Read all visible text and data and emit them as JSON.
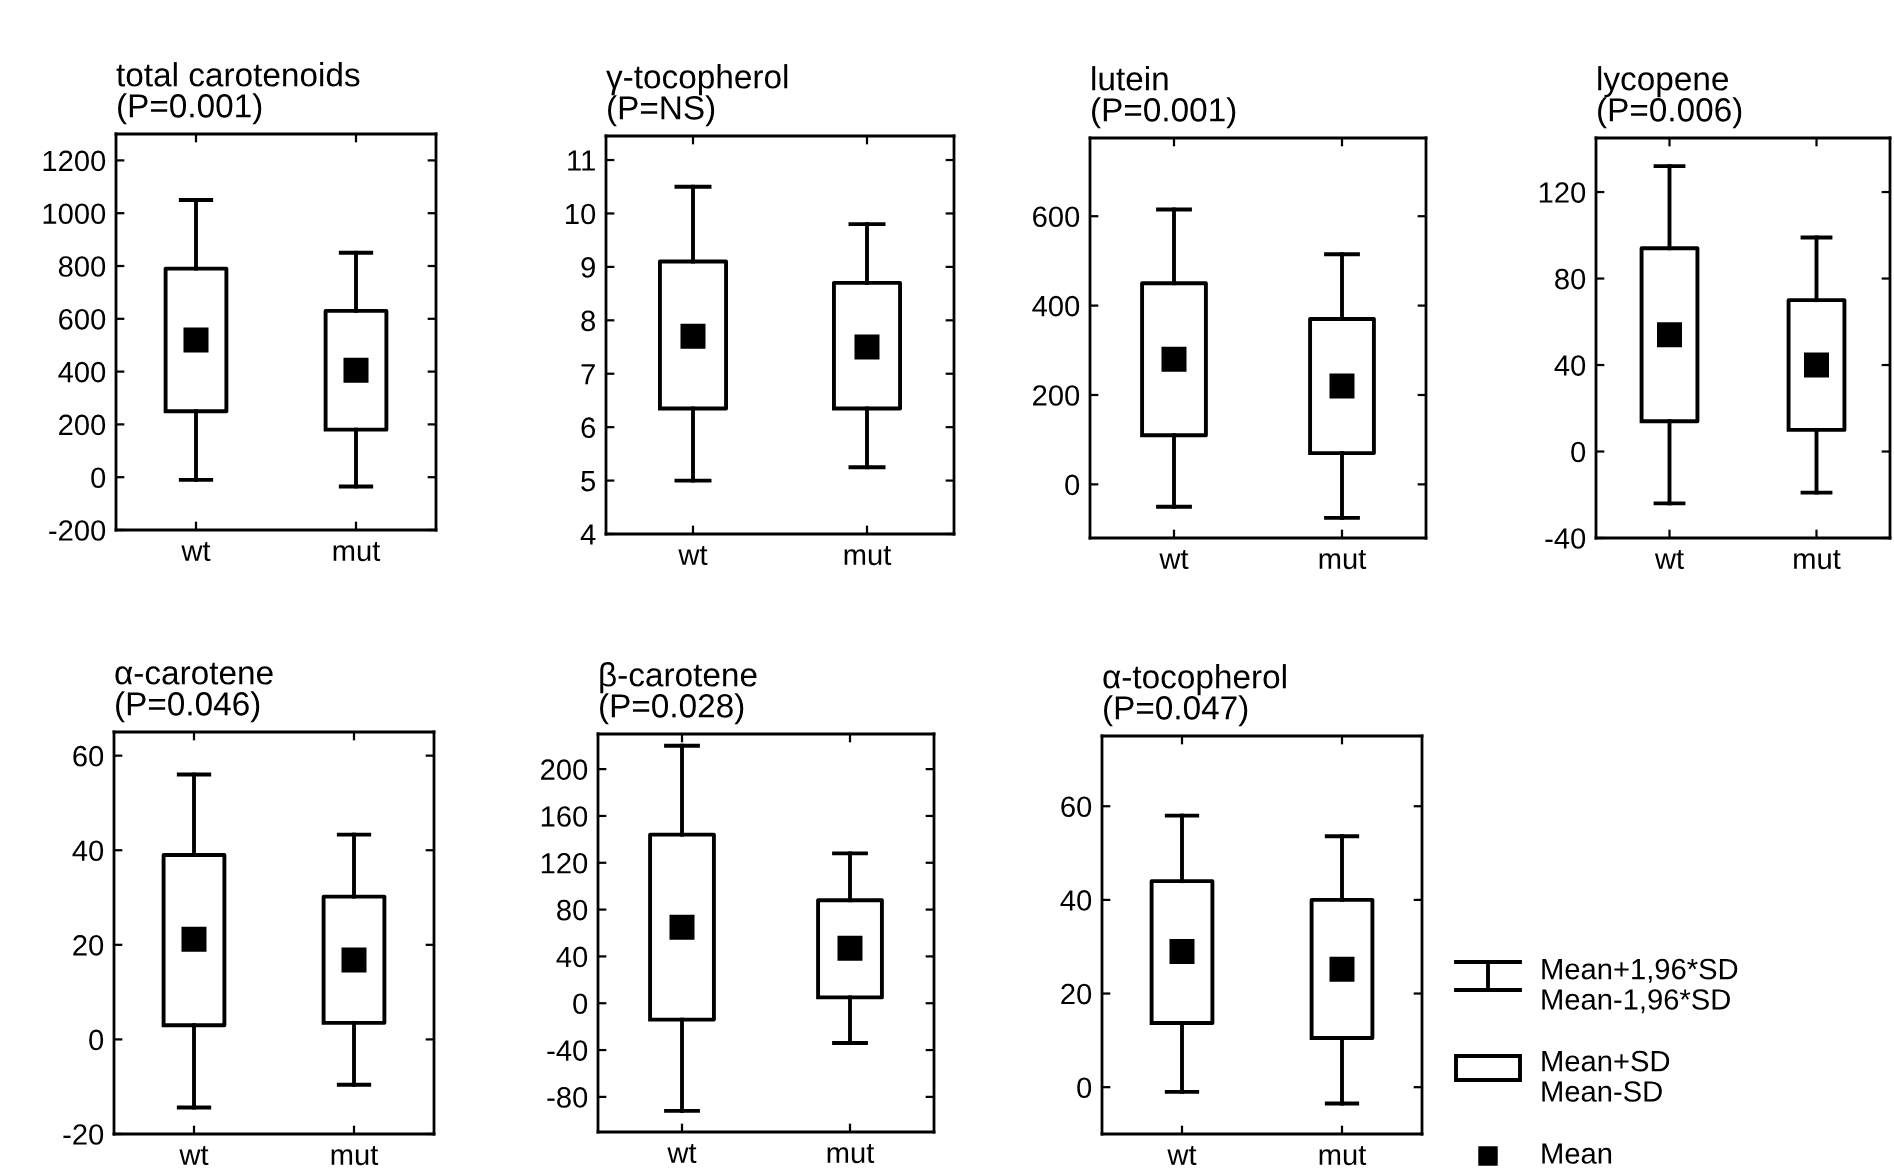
{
  "chart_data": [
    {
      "type": "box",
      "title": "total carotenoids\n(P=0.001)",
      "categories": [
        "wt",
        "mut"
      ],
      "ylim": [
        -200,
        1300
      ],
      "yticks": [
        -200,
        0,
        200,
        400,
        600,
        800,
        1000,
        1200
      ],
      "color": "#000000",
      "grid": false,
      "boxes": [
        {
          "low": -10,
          "q1": 250,
          "mean": 520,
          "q3": 790,
          "high": 1050
        },
        {
          "low": -35,
          "q1": 180,
          "mean": 405,
          "q3": 630,
          "high": 850
        }
      ]
    },
    {
      "type": "box",
      "title": "γ-tocopherol\n(P=NS)",
      "categories": [
        "wt",
        "mut"
      ],
      "ylim": [
        4,
        11.45
      ],
      "yticks": [
        4,
        5,
        6,
        7,
        8,
        9,
        10,
        11
      ],
      "color": "#000000",
      "grid": false,
      "boxes": [
        {
          "low": 5.0,
          "q1": 6.35,
          "mean": 7.7,
          "q3": 9.1,
          "high": 10.5
        },
        {
          "low": 5.25,
          "q1": 6.35,
          "mean": 7.5,
          "q3": 8.7,
          "high": 9.8
        }
      ]
    },
    {
      "type": "box",
      "title": "lutein\n(P=0.001)",
      "categories": [
        "wt",
        "mut"
      ],
      "ylim": [
        -120,
        775
      ],
      "yticks": [
        0,
        200,
        400,
        600
      ],
      "color": "#000000",
      "grid": false,
      "boxes": [
        {
          "low": -50,
          "q1": 110,
          "mean": 280,
          "q3": 450,
          "high": 615
        },
        {
          "low": -75,
          "q1": 70,
          "mean": 220,
          "q3": 370,
          "high": 515
        }
      ]
    },
    {
      "type": "box",
      "title": "lycopene\n(P=0.006)",
      "categories": [
        "wt",
        "mut"
      ],
      "ylim": [
        -40,
        145
      ],
      "yticks": [
        -40,
        0,
        40,
        80,
        120
      ],
      "color": "#000000",
      "grid": false,
      "boxes": [
        {
          "low": -24,
          "q1": 14,
          "mean": 54,
          "q3": 94,
          "high": 132
        },
        {
          "low": -19,
          "q1": 10,
          "mean": 40,
          "q3": 70,
          "high": 99
        }
      ]
    },
    {
      "type": "box",
      "title": "α-carotene\n(P=0.046)",
      "categories": [
        "wt",
        "mut"
      ],
      "ylim": [
        -20,
        65
      ],
      "yticks": [
        -20,
        0,
        20,
        40,
        60
      ],
      "color": "#000000",
      "grid": false,
      "boxes": [
        {
          "low": -14.4,
          "q1": 3,
          "mean": 21.2,
          "q3": 39,
          "high": 56
        },
        {
          "low": -9.6,
          "q1": 3.5,
          "mean": 16.8,
          "q3": 30.2,
          "high": 43.3
        }
      ]
    },
    {
      "type": "box",
      "title": "β-carotene\n(P=0.028)",
      "categories": [
        "wt",
        "mut"
      ],
      "ylim": [
        -110,
        230
      ],
      "yticks": [
        -80,
        -40,
        0,
        40,
        80,
        120,
        160,
        200
      ],
      "color": "#000000",
      "grid": false,
      "boxes": [
        {
          "low": -92,
          "q1": -14,
          "mean": 65,
          "q3": 144,
          "high": 220
        },
        {
          "low": -34,
          "q1": 5,
          "mean": 47,
          "q3": 88,
          "high": 128
        }
      ]
    },
    {
      "type": "box",
      "title": "α-tocopherol\n(P=0.047)",
      "categories": [
        "wt",
        "mut"
      ],
      "ylim": [
        -10,
        75
      ],
      "yticks": [
        0,
        20,
        40,
        60
      ],
      "color": "#000000",
      "grid": false,
      "boxes": [
        {
          "low": -1,
          "q1": 13.7,
          "mean": 29,
          "q3": 44,
          "high": 58
        },
        {
          "low": -3.5,
          "q1": 10.5,
          "mean": 25.2,
          "q3": 40,
          "high": 53.6
        }
      ],
      "annotations": [
        "Mean+1,96*SD\nMean-1,96*SD",
        "Mean+SD\nMean-SD",
        "Mean"
      ]
    }
  ]
}
